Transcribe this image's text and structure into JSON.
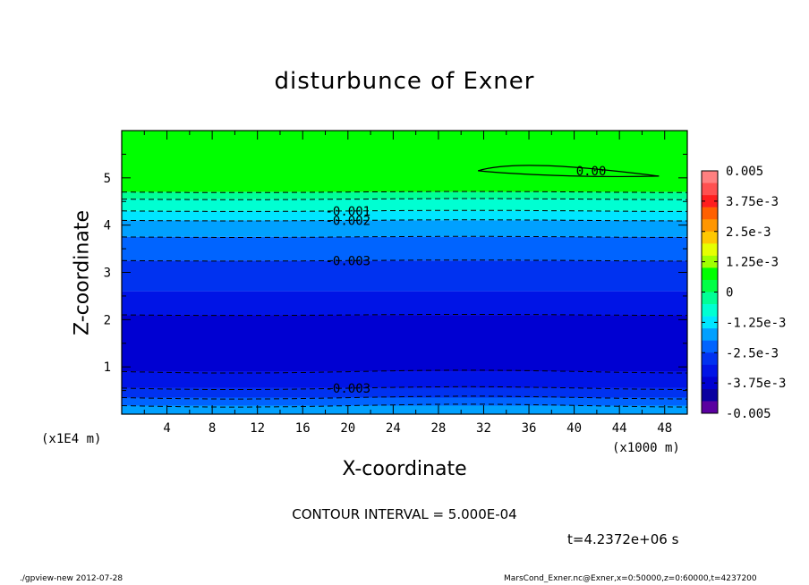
{
  "chart_data": {
    "type": "heatmap",
    "title": "disturbunce of Exner",
    "xlabel": "X-coordinate",
    "ylabel": "Z-coordinate",
    "x_unit_left": "(x1E4 m)",
    "x_unit_right": "(x1000 m)",
    "xlim": [
      0,
      50
    ],
    "ylim": [
      0,
      6
    ],
    "x_ticks": [
      4,
      8,
      12,
      16,
      20,
      24,
      28,
      32,
      36,
      40,
      44,
      48
    ],
    "y_ticks": [
      1,
      2,
      3,
      4,
      5
    ],
    "colorbar": {
      "range": [
        -0.005,
        0.005
      ],
      "tick_labels": [
        "0.005",
        "3.75e-3",
        "2.5e-3",
        "1.25e-3",
        "0",
        "-1.25e-3",
        "-2.5e-3",
        "-3.75e-3",
        "-0.005"
      ],
      "tick_values": [
        0.005,
        0.00375,
        0.0025,
        0.00125,
        0,
        -0.00125,
        -0.0025,
        -0.00375,
        -0.005
      ],
      "colors": [
        "#ff8080",
        "#ff5050",
        "#ff1e1e",
        "#ff6000",
        "#ff9600",
        "#ffc800",
        "#e6ff00",
        "#a0ff00",
        "#00ff00",
        "#00ff46",
        "#00ff96",
        "#00ffd2",
        "#00e6ff",
        "#00a0ff",
        "#0064ff",
        "#0032f0",
        "#0014e6",
        "#0000d2",
        "#0a00a0",
        "#5a00a0"
      ]
    },
    "bands": [
      {
        "z_min": 4.7,
        "z_max": 6.0,
        "color": "#00ff00"
      },
      {
        "z_min": 4.55,
        "z_max": 4.7,
        "color": "#00ff96"
      },
      {
        "z_min": 4.3,
        "z_max": 4.55,
        "color": "#00ffd2"
      },
      {
        "z_min": 4.1,
        "z_max": 4.3,
        "color": "#00e6ff"
      },
      {
        "z_min": 3.75,
        "z_max": 4.1,
        "color": "#00a0ff"
      },
      {
        "z_min": 3.25,
        "z_max": 3.75,
        "color": "#0064ff"
      },
      {
        "z_min": 2.6,
        "z_max": 3.25,
        "color": "#0032f0"
      },
      {
        "z_min": 2.1,
        "z_max": 2.6,
        "color": "#0014e6"
      },
      {
        "z_min": 0.9,
        "z_max": 2.1,
        "color": "#0000d2"
      },
      {
        "z_min": 0.55,
        "z_max": 0.9,
        "color": "#0014e6"
      },
      {
        "z_min": 0.35,
        "z_max": 0.55,
        "color": "#0032f0"
      },
      {
        "z_min": 0.18,
        "z_max": 0.35,
        "color": "#0064ff"
      },
      {
        "z_min": 0.0,
        "z_max": 0.18,
        "color": "#00a0ff"
      }
    ],
    "contour_lines": [
      {
        "z": 4.7,
        "value": "",
        "style": "dashed"
      },
      {
        "z": 4.55,
        "value": "",
        "style": "dashed"
      },
      {
        "z": 4.3,
        "value": "-0.001",
        "style": "dashed",
        "label_x": 20
      },
      {
        "z": 4.1,
        "value": "-0.002",
        "style": "dashed",
        "label_x": 20
      },
      {
        "z": 3.75,
        "value": "",
        "style": "dashed"
      },
      {
        "z": 3.25,
        "value": "-0.003",
        "style": "dashed",
        "label_x": 20
      },
      {
        "z": 2.1,
        "value": "",
        "style": "dashed"
      },
      {
        "z": 0.9,
        "value": "",
        "style": "dashed"
      },
      {
        "z": 0.55,
        "value": "-0.003",
        "style": "dashed",
        "label_x": 20
      },
      {
        "z": 0.35,
        "value": "",
        "style": "dashed"
      },
      {
        "z": 0.18,
        "value": "",
        "style": "dashed"
      }
    ],
    "zero_contour": {
      "value": "0.00",
      "x_min": 31.5,
      "x_max": 47.5,
      "z": 5.15,
      "label_x": 41.5
    }
  },
  "contour_interval": "CONTOUR INTERVAL = 5.000E-04",
  "time_stamp": "t=4.2372e+06 s",
  "footer_left": "./gpview-new   2012-07-28",
  "footer_right": "MarsCond_Exner.nc@Exner,x=0:50000,z=0:60000,t=4237200"
}
